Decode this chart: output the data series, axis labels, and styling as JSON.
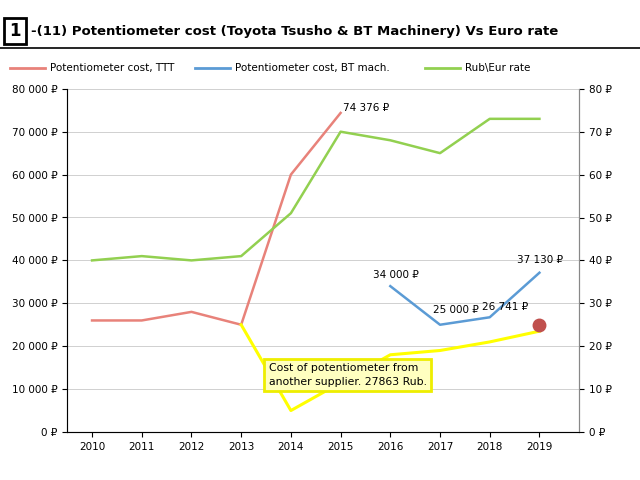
{
  "title": "-(11) Potentiometer cost (Toyota Tsusho & BT Machinery) Vs Euro rate",
  "title_prefix": "1",
  "years_ttt": [
    2010,
    2011,
    2012,
    2013,
    2014,
    2015
  ],
  "values_ttt": [
    26000,
    26000,
    28000,
    25000,
    60000,
    74376
  ],
  "years_bt": [
    2016,
    2017,
    2018,
    2019
  ],
  "values_bt": [
    34000,
    25000,
    26741,
    37130
  ],
  "years_eur": [
    2010,
    2011,
    2012,
    2013,
    2014,
    2015,
    2016,
    2017,
    2018,
    2019
  ],
  "values_eur": [
    40,
    41,
    40,
    41,
    51,
    70,
    68,
    65,
    73,
    73
  ],
  "years_yellow": [
    2013,
    2014,
    2016,
    2017,
    2018,
    2019
  ],
  "values_yellow": [
    25000,
    5000,
    18000,
    19000,
    21000,
    23500
  ],
  "dot_year": 2019,
  "dot_value": 25000,
  "color_ttt": "#E8827A",
  "color_bt": "#5B9BD5",
  "color_eur": "#92D050",
  "color_yellow": "#FFFF00",
  "color_dot": "#C0504D",
  "ylim_left": [
    0,
    80000
  ],
  "ylim_right": [
    0,
    80
  ],
  "yticks_left": [
    0,
    10000,
    20000,
    30000,
    40000,
    50000,
    60000,
    70000,
    80000
  ],
  "yticks_right": [
    0,
    10,
    20,
    30,
    40,
    50,
    60,
    70,
    80
  ],
  "xticks": [
    2010,
    2011,
    2012,
    2013,
    2014,
    2015,
    2016,
    2017,
    2018,
    2019
  ],
  "legend_ttt": "Potentiometer cost, TTT",
  "legend_bt": "Potentiometer cost, BT mach.",
  "legend_eur": "Rub\\Eur rate",
  "annotation_box_text": "Cost of potentiometer from\nanother supplier. 27863 Rub.",
  "annotation_74376": "74 376 ₽",
  "annotation_34000": "34 000 ₽",
  "annotation_25000": "25 000 ₽",
  "annotation_26741": "26 741 ₽",
  "annotation_37130": "37 130 ₽",
  "left_ylabel_unit": "₽",
  "right_ylabel_unit": "₽"
}
